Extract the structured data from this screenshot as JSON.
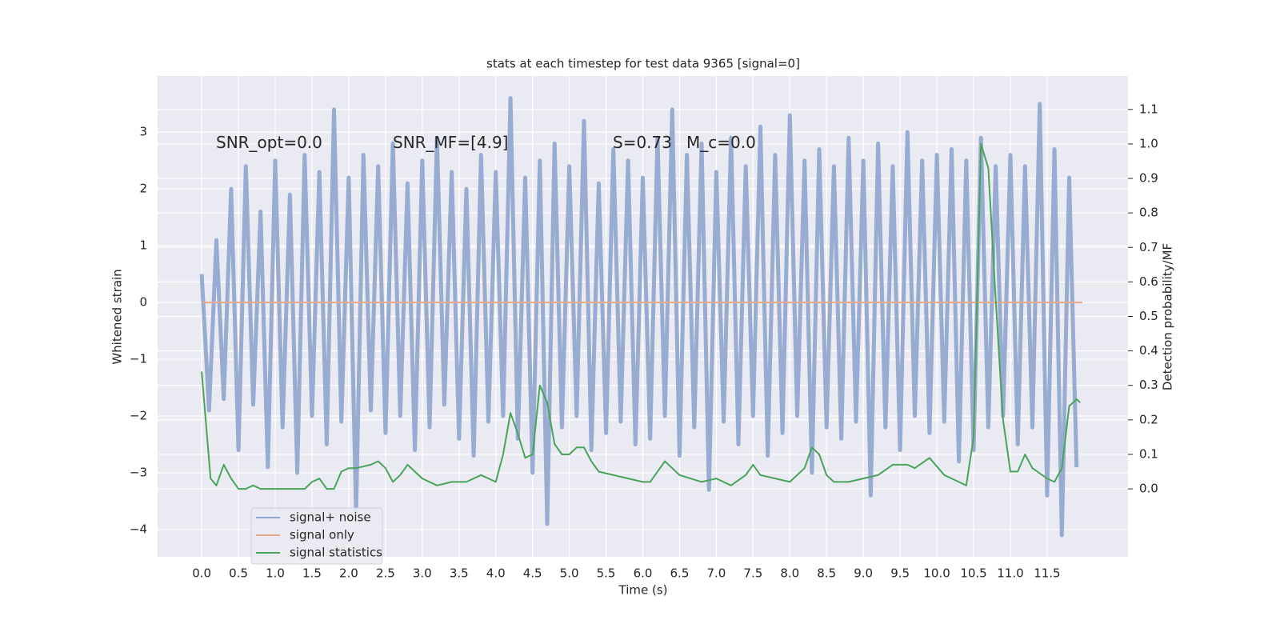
{
  "chart_data": {
    "type": "line",
    "title": "stats at each timestep for test data 9365 [signal=0]",
    "xlabel": "Time (s)",
    "ylabel": "Whitened strain",
    "y2label": "Detection probability/MF",
    "annotations": [
      "SNR_opt=0.0",
      "SNR_MF=[4.9]",
      "S=0.73",
      "M_c=0.0"
    ],
    "xlim": [
      -0.6,
      12.6
    ],
    "ylim": [
      -4.48,
      3.99
    ],
    "y2lim": [
      -0.197,
      1.197
    ],
    "xticks": [
      {
        "value": 0,
        "label": "0.0"
      },
      {
        "value": 0.5,
        "label": "0.5"
      },
      {
        "value": 1,
        "label": "1.0"
      },
      {
        "value": 1.5,
        "label": "1.5"
      },
      {
        "value": 2,
        "label": "2.0"
      },
      {
        "value": 2.5,
        "label": "2.5"
      },
      {
        "value": 3,
        "label": "3.0"
      },
      {
        "value": 3.5,
        "label": "3.5"
      },
      {
        "value": 4,
        "label": "4.0"
      },
      {
        "value": 4.5,
        "label": "4.5"
      },
      {
        "value": 5,
        "label": "5.0"
      },
      {
        "value": 5.5,
        "label": "5.5"
      },
      {
        "value": 6,
        "label": "6.0"
      },
      {
        "value": 6.5,
        "label": "6.5"
      },
      {
        "value": 7,
        "label": "7.0"
      },
      {
        "value": 7.5,
        "label": "7.5"
      },
      {
        "value": 8,
        "label": "8.0"
      },
      {
        "value": 8.5,
        "label": "8.5"
      },
      {
        "value": 9,
        "label": "9.0"
      },
      {
        "value": 9.5,
        "label": "9.5"
      },
      {
        "value": 10,
        "label": "10.0"
      },
      {
        "value": 10.5,
        "label": "10.5"
      },
      {
        "value": 11,
        "label": "11.0"
      },
      {
        "value": 11.5,
        "label": "11.5"
      }
    ],
    "yticks": [
      {
        "value": -4,
        "label": "−4"
      },
      {
        "value": -3,
        "label": "−3"
      },
      {
        "value": -2,
        "label": "−2"
      },
      {
        "value": -1,
        "label": "−1"
      },
      0,
      1,
      2,
      3
    ],
    "y2ticks": [
      {
        "value": 0,
        "label": "0.0"
      },
      {
        "value": 0.1,
        "label": "0.1"
      },
      {
        "value": 0.2,
        "label": "0.2"
      },
      {
        "value": 0.3,
        "label": "0.3"
      },
      {
        "value": 0.4,
        "label": "0.4"
      },
      {
        "value": 0.5,
        "label": "0.5"
      },
      {
        "value": 0.6,
        "label": "0.6"
      },
      {
        "value": 0.7,
        "label": "0.7"
      },
      {
        "value": 0.8,
        "label": "0.8"
      },
      {
        "value": 0.9,
        "label": "0.9"
      },
      {
        "value": 1,
        "label": "1.0"
      },
      {
        "value": 1.1,
        "label": "1.1"
      }
    ],
    "grid": true,
    "legend": "lower left",
    "series": [
      {
        "name": "signal+ noise",
        "color": "#8fa4cc",
        "x": [
          0,
          0.1,
          0.2,
          0.3,
          0.4,
          0.5,
          0.6,
          0.7,
          0.8,
          0.9,
          1,
          1.1,
          1.2,
          1.3,
          1.4,
          1.5,
          1.6,
          1.7,
          1.8,
          1.9,
          2,
          2.1,
          2.2,
          2.3,
          2.4,
          2.5,
          2.6,
          2.7,
          2.8,
          2.9,
          3,
          3.1,
          3.2,
          3.3,
          3.4,
          3.5,
          3.6,
          3.7,
          3.8,
          3.9,
          4,
          4.1,
          4.2,
          4.3,
          4.4,
          4.5,
          4.6,
          4.7,
          4.8,
          4.9,
          5,
          5.1,
          5.2,
          5.3,
          5.4,
          5.5,
          5.6,
          5.7,
          5.8,
          5.9,
          6,
          6.1,
          6.2,
          6.3,
          6.4,
          6.5,
          6.6,
          6.7,
          6.8,
          6.9,
          7,
          7.1,
          7.2,
          7.3,
          7.4,
          7.5,
          7.6,
          7.7,
          7.8,
          7.9,
          8,
          8.1,
          8.2,
          8.3,
          8.4,
          8.5,
          8.6,
          8.7,
          8.8,
          8.9,
          9,
          9.1,
          9.2,
          9.3,
          9.4,
          9.5,
          9.6,
          9.7,
          9.8,
          9.9,
          10,
          10.1,
          10.2,
          10.3,
          10.4,
          10.5,
          10.6,
          10.7,
          10.8,
          10.9,
          11,
          11.1,
          11.2,
          11.3,
          11.4,
          11.5,
          11.6,
          11.7,
          11.8,
          11.9
        ],
        "values": [
          0.5,
          -1.9,
          1.1,
          -1.7,
          2.0,
          -2.6,
          2.4,
          -1.8,
          1.6,
          -2.9,
          2.5,
          -2.2,
          1.9,
          -3.0,
          2.6,
          -2.0,
          2.3,
          -2.5,
          3.4,
          -2.1,
          2.2,
          -3.7,
          2.6,
          -1.9,
          2.4,
          -2.3,
          2.8,
          -2.0,
          2.1,
          -2.6,
          2.5,
          -2.2,
          2.9,
          -1.8,
          2.3,
          -2.4,
          2.0,
          -2.7,
          2.6,
          -2.1,
          2.3,
          -2.0,
          3.6,
          -2.4,
          2.2,
          -3.0,
          2.5,
          -3.9,
          2.8,
          -2.2,
          2.4,
          -2.0,
          3.2,
          -2.6,
          2.1,
          -2.3,
          2.7,
          -2.1,
          2.5,
          -2.5,
          2.2,
          -2.4,
          2.9,
          -2.0,
          3.4,
          -2.7,
          2.6,
          -2.2,
          2.8,
          -3.3,
          2.3,
          -2.1,
          2.9,
          -2.5,
          2.4,
          -2.0,
          3.1,
          -2.7,
          2.6,
          -2.3,
          3.3,
          -2.0,
          2.5,
          -3.0,
          2.7,
          -2.2,
          2.4,
          -2.4,
          2.9,
          -2.1,
          2.5,
          -3.4,
          2.8,
          -2.2,
          2.4,
          -2.6,
          3.0,
          -2.0,
          2.5,
          -2.3,
          2.6,
          -2.1,
          2.7,
          -2.8,
          2.5,
          -2.6,
          2.9,
          -2.2,
          2.4,
          -2.0,
          2.6,
          -2.5,
          2.4,
          -2.2,
          3.5,
          -3.4,
          2.7,
          -4.1,
          2.2,
          -2.9
        ]
      },
      {
        "name": "signal only",
        "color": "#e8a98a",
        "x": [
          0,
          11.98
        ],
        "values": [
          0,
          0
        ]
      },
      {
        "name": "signal statistics",
        "color": "#4aa35a",
        "axis": "y2",
        "x": [
          0,
          0.12,
          0.2,
          0.3,
          0.4,
          0.5,
          0.6,
          0.7,
          0.8,
          1,
          1.2,
          1.4,
          1.5,
          1.6,
          1.7,
          1.8,
          1.9,
          2,
          2.1,
          2.3,
          2.4,
          2.5,
          2.6,
          2.7,
          2.8,
          3,
          3.2,
          3.4,
          3.6,
          3.8,
          4,
          4.1,
          4.2,
          4.3,
          4.4,
          4.5,
          4.6,
          4.7,
          4.8,
          4.9,
          5,
          5.1,
          5.2,
          5.3,
          5.4,
          5.6,
          5.8,
          6,
          6.1,
          6.3,
          6.4,
          6.5,
          6.8,
          7,
          7.2,
          7.4,
          7.5,
          7.6,
          7.8,
          8,
          8.2,
          8.3,
          8.4,
          8.5,
          8.6,
          8.8,
          9,
          9.2,
          9.4,
          9.6,
          9.7,
          9.9,
          10.1,
          10.3,
          10.4,
          10.5,
          10.6,
          10.7,
          10.8,
          10.9,
          11,
          11.1,
          11.2,
          11.3,
          11.5,
          11.6,
          11.7,
          11.8,
          11.9,
          11.95
        ],
        "values": [
          0.34,
          0.03,
          0.01,
          0.07,
          0.03,
          0.0,
          0.0,
          0.01,
          0.0,
          0.0,
          0.0,
          0.0,
          0.02,
          0.03,
          0.0,
          0.0,
          0.05,
          0.06,
          0.06,
          0.07,
          0.08,
          0.06,
          0.02,
          0.04,
          0.07,
          0.03,
          0.01,
          0.02,
          0.02,
          0.04,
          0.02,
          0.1,
          0.22,
          0.16,
          0.09,
          0.1,
          0.3,
          0.25,
          0.13,
          0.1,
          0.1,
          0.12,
          0.12,
          0.08,
          0.05,
          0.04,
          0.03,
          0.02,
          0.02,
          0.08,
          0.06,
          0.04,
          0.02,
          0.03,
          0.01,
          0.04,
          0.07,
          0.04,
          0.03,
          0.02,
          0.06,
          0.12,
          0.1,
          0.04,
          0.02,
          0.02,
          0.03,
          0.04,
          0.07,
          0.07,
          0.06,
          0.09,
          0.04,
          0.02,
          0.01,
          0.15,
          1.0,
          0.93,
          0.55,
          0.2,
          0.05,
          0.05,
          0.1,
          0.06,
          0.03,
          0.02,
          0.06,
          0.24,
          0.26,
          0.25
        ]
      }
    ]
  }
}
